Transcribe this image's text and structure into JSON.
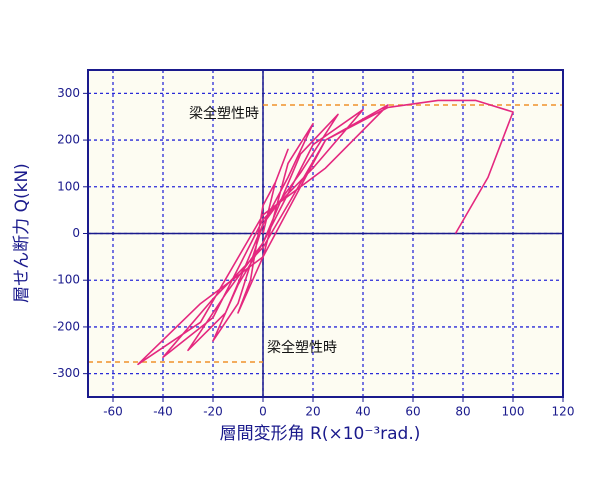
{
  "chart_data": {
    "type": "line",
    "xlabel": "層間変形角 R(×10⁻³rad.)",
    "ylabel": "層せん断力 Q(kN)",
    "x": [
      0,
      5,
      10,
      5,
      0,
      -5,
      -10,
      -5,
      0,
      10,
      20,
      10,
      0,
      -10,
      -20,
      -10,
      0,
      15,
      30,
      15,
      0,
      -15,
      -30,
      -15,
      0,
      20,
      40,
      20,
      0,
      -20,
      -40,
      -20,
      0,
      25,
      50,
      25,
      0,
      -25,
      -50,
      -25,
      0,
      25,
      50,
      70,
      85,
      100,
      90,
      77
    ],
    "values": [
      0,
      110,
      180,
      110,
      60,
      -100,
      -170,
      -110,
      -50,
      150,
      235,
      120,
      20,
      -150,
      -230,
      -110,
      -20,
      170,
      255,
      130,
      20,
      -170,
      -250,
      -130,
      -20,
      190,
      265,
      140,
      30,
      -180,
      -265,
      -140,
      -30,
      200,
      275,
      140,
      40,
      -190,
      -280,
      -150,
      -50,
      200,
      270,
      285,
      285,
      260,
      120,
      0
    ],
    "color": "#e4287f",
    "xlim": [
      -70,
      120
    ],
    "ylim": [
      -350,
      350
    ],
    "xticks": [
      -60,
      -40,
      -20,
      0,
      20,
      40,
      60,
      80,
      100,
      120
    ],
    "yticks": [
      -300,
      -200,
      -100,
      0,
      100,
      200,
      300
    ],
    "grid": true,
    "reference_lines": [
      {
        "value": 275,
        "label": "梁全塑性時"
      },
      {
        "value": -275,
        "label": "梁全塑性時"
      }
    ]
  }
}
